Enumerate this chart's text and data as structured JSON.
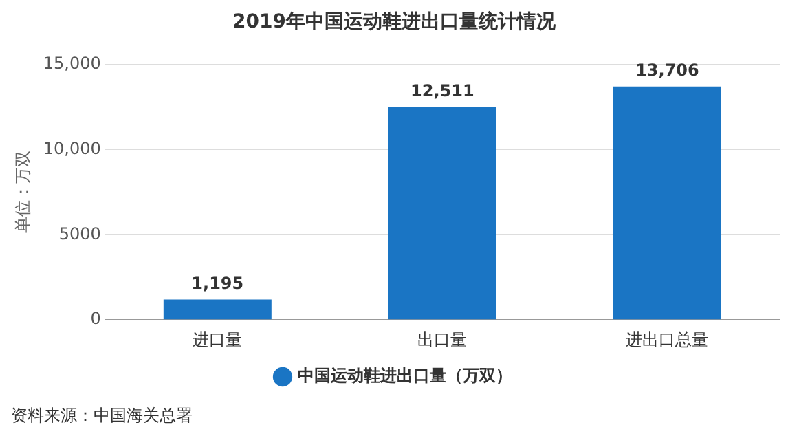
{
  "chart_data": {
    "type": "bar",
    "title": "2019年中国运动鞋进出口量统计情况",
    "ylabel": "单位：万双",
    "categories": [
      "进口量",
      "出口量",
      "进出口总量"
    ],
    "series": [
      {
        "name": "中国运动鞋进出口量（万双）",
        "color": "#1a75c4",
        "values": [
          1195,
          12511,
          13706
        ],
        "value_labels": [
          "1,195",
          "12,511",
          "13,706"
        ]
      }
    ],
    "ylim": [
      0,
      15000
    ],
    "yticks": [
      0,
      5000,
      {
        "value": 10000,
        "label": "10,000"
      },
      {
        "value": 15000,
        "label": "15,000"
      }
    ],
    "grid": "y",
    "legend": "bottom",
    "annotations": [
      "资料来源：中国海关总署"
    ]
  }
}
